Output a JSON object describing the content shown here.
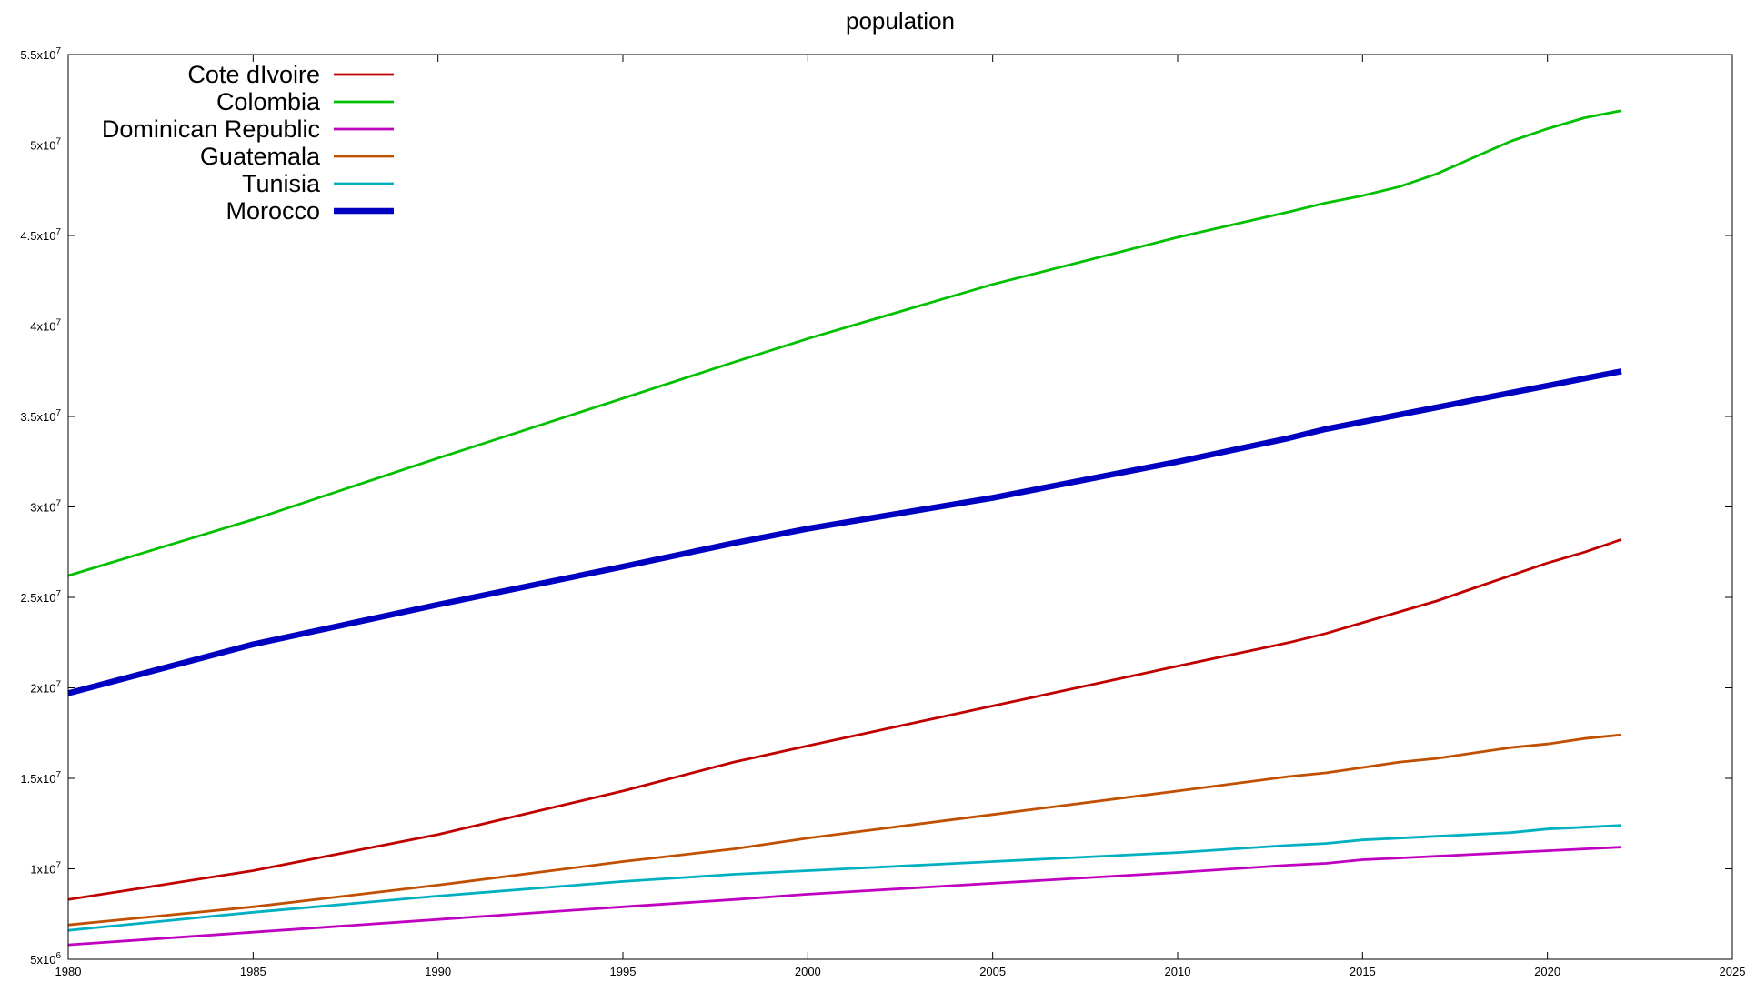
{
  "chart_data": {
    "type": "line",
    "title": "population",
    "xlabel": "",
    "ylabel": "",
    "xlim": [
      1980,
      2025
    ],
    "ylim": [
      5000000,
      55000000
    ],
    "x_ticks": [
      {
        "value": 1980,
        "label": "1980"
      },
      {
        "value": 1985,
        "label": "1985"
      },
      {
        "value": 1990,
        "label": "1990"
      },
      {
        "value": 1995,
        "label": "1995"
      },
      {
        "value": 2000,
        "label": "2000"
      },
      {
        "value": 2005,
        "label": "2005"
      },
      {
        "value": 2010,
        "label": "2010"
      },
      {
        "value": 2015,
        "label": "2015"
      },
      {
        "value": 2020,
        "label": "2020"
      },
      {
        "value": 2025,
        "label": "2025"
      }
    ],
    "y_ticks": [
      {
        "value": 5000000,
        "mantissa": "5",
        "exp": "6"
      },
      {
        "value": 10000000,
        "mantissa": "1",
        "exp": "7"
      },
      {
        "value": 15000000,
        "mantissa": "1.5",
        "exp": "7"
      },
      {
        "value": 20000000,
        "mantissa": "2",
        "exp": "7"
      },
      {
        "value": 25000000,
        "mantissa": "2.5",
        "exp": "7"
      },
      {
        "value": 30000000,
        "mantissa": "3",
        "exp": "7"
      },
      {
        "value": 35000000,
        "mantissa": "3.5",
        "exp": "7"
      },
      {
        "value": 40000000,
        "mantissa": "4",
        "exp": "7"
      },
      {
        "value": 45000000,
        "mantissa": "4.5",
        "exp": "7"
      },
      {
        "value": 50000000,
        "mantissa": "5",
        "exp": "7"
      },
      {
        "value": 55000000,
        "mantissa": "5.5",
        "exp": "7"
      }
    ],
    "tick_multiplier": "x10",
    "grid": false,
    "legend_position": "top-left",
    "x": [
      1980,
      1985,
      1990,
      1995,
      1998,
      2000,
      2005,
      2010,
      2013,
      2014,
      2015,
      2016,
      2017,
      2018,
      2019,
      2020,
      2021,
      2022
    ],
    "series": [
      {
        "name": "Cote dIvoire",
        "color": "#c00000",
        "weight": "normal",
        "values": [
          8300000,
          9900000,
          11900000,
          14300000,
          15900000,
          16800000,
          19000000,
          21200000,
          22500000,
          23000000,
          23600000,
          24200000,
          24800000,
          25500000,
          26200000,
          26900000,
          27500000,
          28200000
        ]
      },
      {
        "name": "Colombia",
        "color": "#00c000",
        "weight": "normal",
        "values": [
          26200000,
          29300000,
          32700000,
          36000000,
          38000000,
          39300000,
          42300000,
          44900000,
          46300000,
          46800000,
          47200000,
          47700000,
          48400000,
          49300000,
          50200000,
          50900000,
          51500000,
          51900000
        ]
      },
      {
        "name": "Dominican Republic",
        "color": "#c000c0",
        "weight": "normal",
        "values": [
          5800000,
          6500000,
          7200000,
          7900000,
          8300000,
          8600000,
          9200000,
          9800000,
          10200000,
          10300000,
          10500000,
          10600000,
          10700000,
          10800000,
          10900000,
          11000000,
          11100000,
          11200000
        ]
      },
      {
        "name": "Guatemala",
        "color": "#c05000",
        "weight": "normal",
        "values": [
          6900000,
          7900000,
          9100000,
          10400000,
          11100000,
          11700000,
          13000000,
          14300000,
          15100000,
          15300000,
          15600000,
          15900000,
          16100000,
          16400000,
          16700000,
          16900000,
          17200000,
          17400000
        ]
      },
      {
        "name": "Tunisia",
        "color": "#00b0c0",
        "weight": "normal",
        "values": [
          6600000,
          7600000,
          8500000,
          9300000,
          9700000,
          9900000,
          10400000,
          10900000,
          11300000,
          11400000,
          11600000,
          11700000,
          11800000,
          11900000,
          12000000,
          12200000,
          12300000,
          12400000
        ]
      },
      {
        "name": "Morocco",
        "color": "#0000c0",
        "weight": "bold",
        "values": [
          19700000,
          22400000,
          24600000,
          26700000,
          28000000,
          28800000,
          30500000,
          32500000,
          33800000,
          34300000,
          34700000,
          35100000,
          35500000,
          35900000,
          36300000,
          36700000,
          37100000,
          37500000
        ]
      }
    ]
  }
}
